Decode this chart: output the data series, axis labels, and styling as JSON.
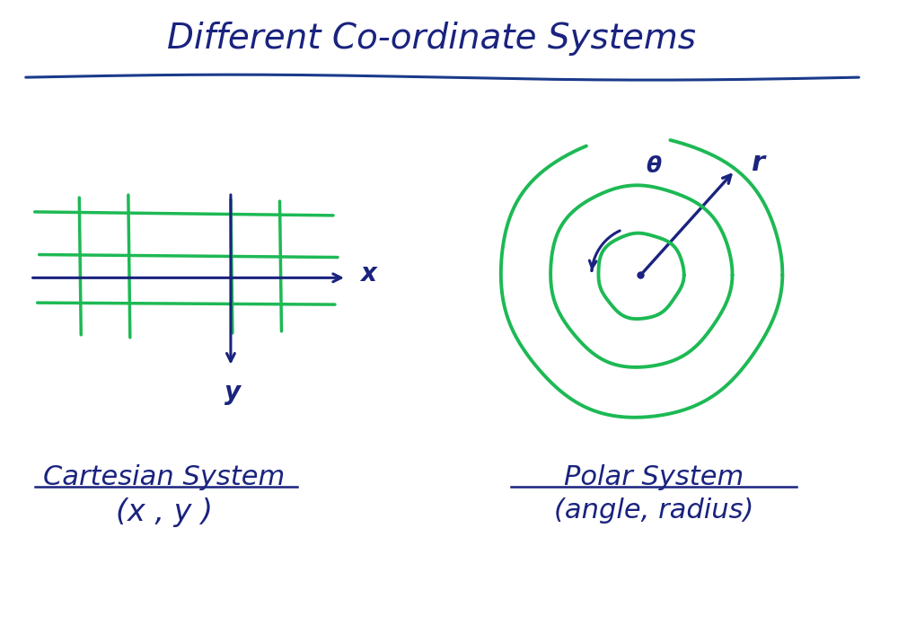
{
  "bg_color": "#ffffff",
  "title": "Different Co-ordinate Systems",
  "title_color": "#1a237e",
  "title_fontsize": 28,
  "underline_color": "#1a3a8a",
  "green_color": "#1db954",
  "blue_color": "#1a237e",
  "cartesian_label": "Cartesian System",
  "cartesian_sub": "(x , y )",
  "polar_label": "Polar System",
  "polar_sub": "(angle, radius)",
  "label_fontsize": 22,
  "sub_fontsize": 24,
  "axis_label_fontsize": 20
}
